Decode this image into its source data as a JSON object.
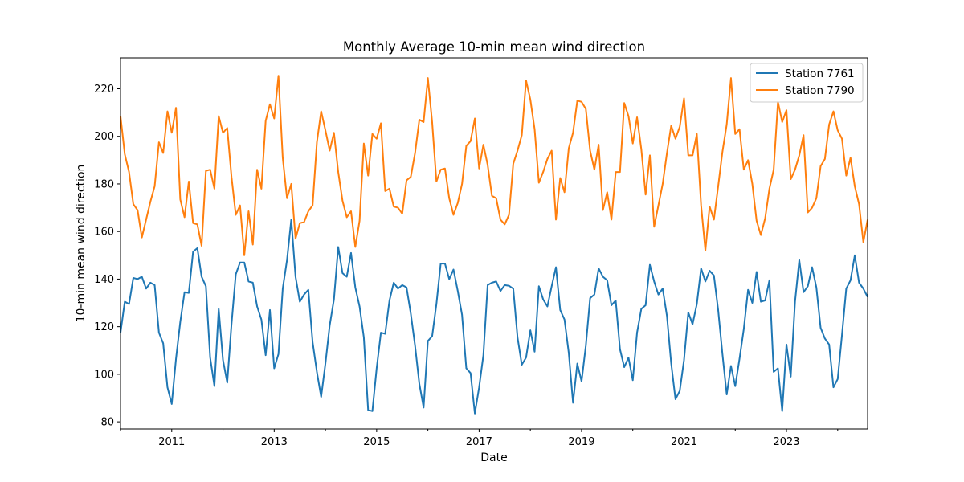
{
  "chart_data": {
    "type": "line",
    "title": "Monthly Average 10-min mean wind direction",
    "xlabel": "Date",
    "ylabel": "10-min mean wind direction",
    "x_start": "2010-01",
    "x_end": "2024-08",
    "xlim": [
      "2010-01",
      "2024-08"
    ],
    "ylim": [
      77,
      233
    ],
    "x_ticks": [
      "2011",
      "2013",
      "2015",
      "2017",
      "2019",
      "2021",
      "2023"
    ],
    "y_ticks": [
      80,
      100,
      120,
      140,
      160,
      180,
      200,
      220
    ],
    "grid": false,
    "legend_position": "top-right",
    "series": [
      {
        "name": "Station 7761",
        "color": "#1f77b4",
        "values": [
          117.5,
          130.5,
          129.5,
          140.5,
          140,
          141,
          136,
          138.5,
          137.5,
          117.5,
          113,
          94.5,
          87.5,
          106.5,
          122,
          134.5,
          134.2,
          151.5,
          153,
          141,
          137,
          107,
          95,
          127.5,
          106,
          96.5,
          121,
          142,
          147,
          147,
          139,
          138.5,
          128.5,
          123,
          108,
          127,
          102.5,
          108.5,
          136,
          148,
          165,
          141,
          130.5,
          133.5,
          135.5,
          113.5,
          101,
          90.5,
          104.5,
          120.5,
          131.5,
          153.5,
          142.5,
          141,
          151,
          136.5,
          128.5,
          115.5,
          85,
          84.5,
          102.5,
          117.5,
          117,
          131,
          138.5,
          136,
          137.5,
          136.5,
          125.5,
          112,
          96,
          86,
          114,
          116,
          129.5,
          146.5,
          146.5,
          140,
          144,
          135,
          125,
          102.5,
          100.5,
          83.5,
          94.5,
          108,
          137.5,
          138.5,
          139,
          135,
          137.5,
          137.2,
          136,
          115.5,
          104,
          107,
          118.5,
          109.5,
          137,
          131.5,
          128.5,
          137,
          145,
          127,
          123,
          109,
          88,
          104.5,
          97,
          112,
          132,
          133.5,
          144.5,
          141,
          139.5,
          129,
          131,
          110.5,
          103,
          107,
          97.5,
          117.5,
          127.5,
          129,
          146,
          139,
          133.5,
          136,
          124.5,
          104.5,
          89.5,
          93,
          106,
          126,
          121,
          129.5,
          144.5,
          139,
          143.5,
          141.5,
          127,
          108.5,
          91.5,
          103.5,
          95,
          106.5,
          119,
          135.5,
          130,
          143,
          130.5,
          131,
          139.5,
          101,
          102.5,
          84.5,
          112.5,
          99,
          130.5,
          148,
          134.5,
          137,
          145,
          136.5,
          119.5,
          115,
          112.5,
          94.5,
          98,
          116.5,
          136,
          139.5,
          150,
          138.5,
          136,
          132.5
        ]
      },
      {
        "name": "Station 7790",
        "color": "#ff7f0e",
        "values": [
          208.5,
          192.5,
          185,
          171.5,
          169,
          157.5,
          165,
          172.5,
          179,
          197.5,
          193,
          210.5,
          201.5,
          212,
          173.5,
          166,
          181,
          163.5,
          163,
          154,
          185.5,
          186,
          178,
          208.5,
          201.5,
          203.5,
          183,
          167,
          171,
          150,
          168.5,
          154.5,
          186,
          178,
          206.5,
          213.5,
          207.5,
          225.5,
          191,
          174,
          180,
          157,
          163.5,
          164,
          168.5,
          171,
          197.5,
          210.5,
          202.5,
          194,
          201.5,
          185,
          173,
          166,
          168.5,
          153.5,
          164.5,
          197,
          183.5,
          201,
          199,
          205.5,
          177,
          178,
          170.5,
          170,
          167.5,
          181.5,
          183,
          193,
          207,
          206,
          224.5,
          206,
          181,
          186,
          186.5,
          174,
          167,
          172,
          180,
          196,
          198,
          207.5,
          186.5,
          196.5,
          188,
          175,
          174,
          165,
          163,
          167,
          188.5,
          194,
          200.5,
          223.5,
          215.5,
          203,
          180.5,
          185,
          190.5,
          194,
          165,
          182.5,
          176.5,
          195,
          201.5,
          215,
          214.5,
          211.5,
          194,
          186,
          196.5,
          169,
          176.5,
          165,
          185,
          185,
          214,
          208.5,
          197,
          208,
          194.5,
          175.5,
          192,
          162,
          171,
          180,
          193,
          204.5,
          199,
          204,
          216,
          192,
          192,
          201,
          171,
          152,
          170.5,
          165,
          179,
          193.5,
          205,
          224.5,
          201,
          203,
          186,
          190,
          180,
          164.5,
          158.5,
          165.5,
          178,
          186,
          214.5,
          206,
          211,
          182,
          186,
          192,
          200.5,
          168,
          170,
          174,
          187.5,
          190.5,
          205,
          210.5,
          202.5,
          199,
          183.5,
          191,
          179,
          171.5,
          155.5,
          165
        ]
      }
    ]
  }
}
